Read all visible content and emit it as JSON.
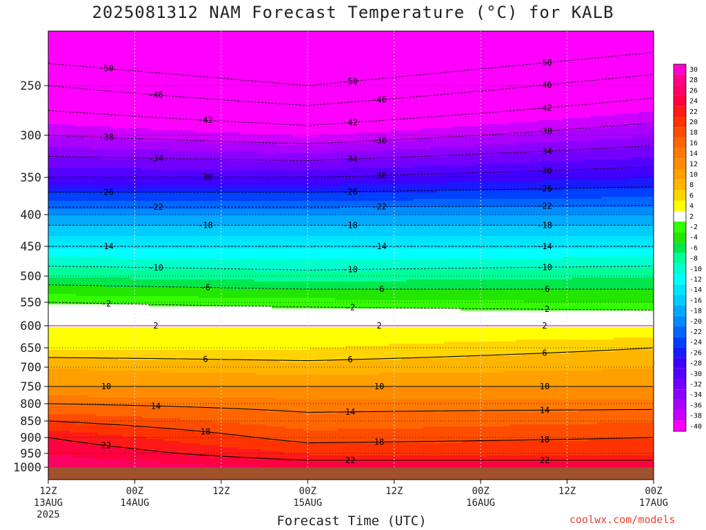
{
  "title": "2025081312 NAM Forecast Temperature (°C) for KALB",
  "xlabel": "Forecast Time (UTC)",
  "credit": "coolwx.com/models",
  "chart_data": {
    "type": "contour-time-height",
    "title": "2025081312 NAM Forecast Temperature (°C) for KALB",
    "xlabel": "Forecast Time (UTC)",
    "ylabel": "",
    "y_ticks": [
      250,
      300,
      350,
      400,
      450,
      500,
      550,
      600,
      650,
      700,
      750,
      800,
      850,
      900,
      950,
      1000
    ],
    "ylim": [
      200,
      1030
    ],
    "x_ticks": [
      {
        "hour": 0,
        "line1": "12Z",
        "line2": "13AUG",
        "line3": "2025"
      },
      {
        "hour": 12,
        "line1": "00Z",
        "line2": "14AUG",
        "line3": ""
      },
      {
        "hour": 24,
        "line1": "12Z",
        "line2": "",
        "line3": ""
      },
      {
        "hour": 36,
        "line1": "00Z",
        "line2": "15AUG",
        "line3": ""
      },
      {
        "hour": 48,
        "line1": "12Z",
        "line2": "",
        "line3": ""
      },
      {
        "hour": 60,
        "line1": "00Z",
        "line2": "16AUG",
        "line3": ""
      },
      {
        "hour": 72,
        "line1": "12Z",
        "line2": "",
        "line3": ""
      },
      {
        "hour": 84,
        "line1": "00Z",
        "line2": "17AUG",
        "line3": ""
      }
    ],
    "xlim": [
      0,
      84
    ],
    "colorbar_levels": [
      "30",
      "28",
      "26",
      "24",
      "22",
      "20",
      "18",
      "16",
      "14",
      "12",
      "10",
      "8",
      "6",
      "4",
      "2",
      "-2",
      "-4",
      "-6",
      "-8",
      "-10",
      "-12",
      "-14",
      "-16",
      "-18",
      "-20",
      "-22",
      "-24",
      "-26",
      "-28",
      "-30",
      "-32",
      "-34",
      "-36",
      "-38",
      "-40"
    ],
    "colorbar_colors": [
      "#ff00cc",
      "#ff008c",
      "#ff0064",
      "#ff0040",
      "#ff1a1a",
      "#ff3300",
      "#ff4d00",
      "#ff6600",
      "#ff7a00",
      "#ff8c00",
      "#ffa000",
      "#ffb400",
      "#ffd400",
      "#ffff00",
      "#ffffff",
      "#33ff00",
      "#22e600",
      "#00e64d",
      "#00ff99",
      "#00ffcc",
      "#00ffff",
      "#00e5ff",
      "#00ccff",
      "#00aaff",
      "#008cff",
      "#0066ff",
      "#0040ff",
      "#1a1aff",
      "#4000ff",
      "#5500ff",
      "#7300ff",
      "#8c00ff",
      "#aa00ff",
      "#cc00ff",
      "#ff00ff"
    ],
    "contour_profiles": [
      {
        "hour": 0,
        "temps_at_levels": {
          "250": -46,
          "300": -38,
          "350": -30,
          "400": -20,
          "450": -14,
          "500": -8,
          "550": -2,
          "600": 2,
          "650": 4,
          "700": 8,
          "750": 10,
          "800": 14,
          "850": 18,
          "900": 22,
          "950": 24,
          "1000": 26
        }
      },
      {
        "hour": 36,
        "temps_at_levels": {
          "250": -50,
          "300": -40,
          "350": -30,
          "400": -20,
          "450": -14,
          "500": -9,
          "550": -3,
          "600": 2,
          "650": 4,
          "700": 7,
          "750": 10,
          "800": 13,
          "850": 15,
          "900": 17,
          "950": 20,
          "1000": 24
        }
      },
      {
        "hour": 84,
        "temps_at_levels": {
          "250": -44,
          "300": -36,
          "350": -28,
          "400": -20,
          "450": -14,
          "500": -8,
          "550": -4,
          "600": 2,
          "650": 6,
          "700": 8,
          "750": 10,
          "800": 13,
          "850": 16,
          "900": 18,
          "950": 20,
          "1000": 24
        }
      }
    ],
    "contour_labels": [
      "-50",
      "-46",
      "-42",
      "-38",
      "-34",
      "-30",
      "-26",
      "-22",
      "-18",
      "-14",
      "-10",
      "-6",
      "-2",
      "2",
      "6",
      "10",
      "14",
      "18",
      "22"
    ],
    "grid": true
  }
}
